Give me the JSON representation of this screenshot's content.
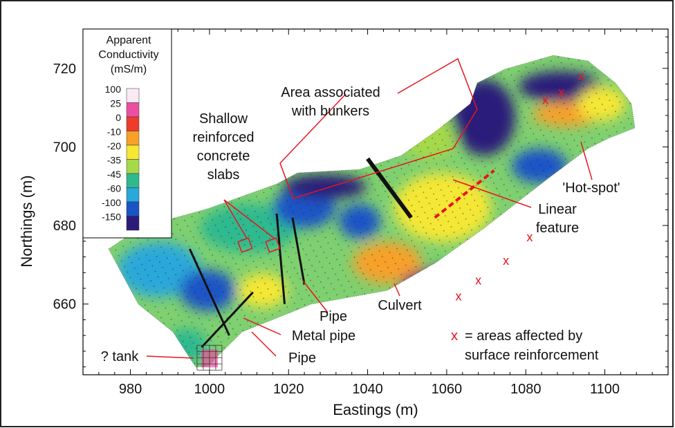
{
  "chart_data": {
    "type": "heatmap",
    "title": "",
    "xlabel": "Eastings (m)",
    "ylabel": "Northings (m)",
    "xlim": [
      968,
      1116
    ],
    "ylim": [
      642,
      730
    ],
    "xticks": [
      980,
      1000,
      1020,
      1040,
      1060,
      1080,
      1100
    ],
    "yticks": [
      660,
      680,
      700,
      720
    ],
    "grid": false,
    "legend_position": "top-left",
    "colorbar": {
      "title_lines": [
        "Apparent",
        "Conductivity",
        "(mS/m)"
      ],
      "levels": [
        {
          "label": "100",
          "color": "#fbe9f3"
        },
        {
          "label": "25",
          "color": "#ec4fa1"
        },
        {
          "label": "0",
          "color": "#ee3b2c"
        },
        {
          "label": "-10",
          "color": "#f7a12a"
        },
        {
          "label": "-20",
          "color": "#f5e734"
        },
        {
          "label": "-35",
          "color": "#a6d94a"
        },
        {
          "label": "-45",
          "color": "#2fb98f"
        },
        {
          "label": "-60",
          "color": "#29a8d9"
        },
        {
          "label": "-100",
          "color": "#1a55c6"
        },
        {
          "label": "-150",
          "color": "#2b1c7a"
        }
      ]
    },
    "annotations": [
      {
        "text_lines": [
          "Area associated",
          "with bunkers"
        ],
        "anchor": [
          1041,
          711
        ]
      },
      {
        "text_lines": [
          "Shallow",
          "reinforced",
          "concrete",
          "slabs"
        ],
        "anchor": [
          1006,
          699
        ]
      },
      {
        "text_lines": [
          "'Hot-spot'"
        ],
        "anchor": [
          1103,
          688
        ]
      },
      {
        "text_lines": [
          "Linear",
          "feature"
        ],
        "anchor": [
          1094,
          680
        ]
      },
      {
        "text_lines": [
          "Pipe"
        ],
        "anchor": [
          1030,
          658
        ]
      },
      {
        "text_lines": [
          "Culvert"
        ],
        "anchor": [
          1051,
          660
        ]
      },
      {
        "text_lines": [
          "Metal pipe"
        ],
        "anchor": [
          1019,
          653
        ]
      },
      {
        "text_lines": [
          "Pipe"
        ],
        "anchor": [
          1015,
          648
        ]
      },
      {
        "text_lines": [
          "? tank"
        ],
        "anchor": [
          980,
          648
        ]
      }
    ],
    "x_marker_legend": {
      "symbol": "x",
      "lines": [
        "= areas affected by",
        "surface reinforcement"
      ],
      "color": "#e8141c"
    },
    "x_markers": [
      [
        1063,
        662
      ],
      [
        1068,
        666
      ],
      [
        1075,
        671
      ],
      [
        1081,
        677
      ],
      [
        1085,
        712
      ],
      [
        1089,
        714
      ],
      [
        1094,
        718
      ]
    ],
    "linear_feature": {
      "from": [
        1057,
        682
      ],
      "to": [
        1072,
        694
      ],
      "color": "#e8141c"
    },
    "pipes": [
      {
        "from": [
          995,
          674
        ],
        "to": [
          1005,
          652
        ]
      },
      {
        "from": [
          998,
          649
        ],
        "to": [
          1011,
          663
        ]
      },
      {
        "from": [
          1017,
          683
        ],
        "to": [
          1019,
          660
        ]
      },
      {
        "from": [
          1021,
          682
        ],
        "to": [
          1024,
          665
        ]
      },
      {
        "from": [
          1040,
          697
        ],
        "to": [
          1051,
          682
        ]
      }
    ],
    "slabs": [
      [
        1009,
        675
      ],
      [
        1016,
        675
      ]
    ],
    "tank": [
      1000,
      646
    ],
    "hot_spot": [
      1095,
      701
    ]
  }
}
